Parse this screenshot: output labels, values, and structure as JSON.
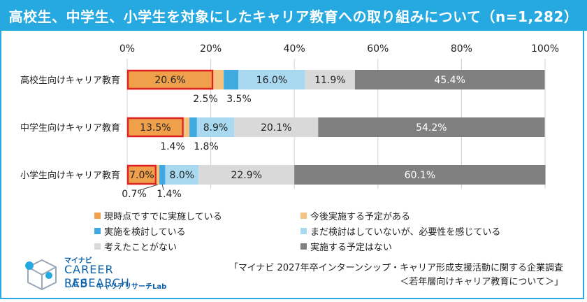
{
  "title": "高校生、中学生、小学生を対象にしたキャリア教育への取り組みについて（n=1,282）",
  "chart_data": {
    "type": "bar",
    "orientation": "horizontal",
    "stacked": true,
    "xlim": [
      0,
      100
    ],
    "xticks": [
      "0%",
      "20%",
      "40%",
      "60%",
      "80%",
      "100%"
    ],
    "categories": [
      "高校生向けキャリア教育",
      "中学生向けキャリア教育",
      "小学生向けキャリア教育"
    ],
    "series": [
      {
        "name": "現時点ですでに実施している",
        "color": "#f0a04b",
        "values": [
          20.6,
          13.5,
          7.0
        ],
        "labels": [
          "20.6%",
          "13.5%",
          "7.0%"
        ]
      },
      {
        "name": "今後実施する予定がある",
        "color": "#f5c27f",
        "values": [
          2.5,
          1.4,
          0.7
        ],
        "labels": [
          "2.5%",
          "1.4%",
          "0.7%"
        ]
      },
      {
        "name": "実施を検討している",
        "color": "#3fa9e0",
        "values": [
          3.5,
          1.8,
          1.4
        ],
        "labels": [
          "3.5%",
          "1.8%",
          "1.4%"
        ]
      },
      {
        "name": "まだ検討はしていないが、必要性を感じている",
        "color": "#a9d9f0",
        "values": [
          16.0,
          8.9,
          8.0
        ],
        "labels": [
          "16.0%",
          "8.9%",
          "8.0%"
        ]
      },
      {
        "name": "考えたことがない",
        "color": "#d9d9d9",
        "values": [
          11.9,
          20.1,
          22.9
        ],
        "labels": [
          "11.9%",
          "20.1%",
          "22.9%"
        ]
      },
      {
        "name": "実施する予定はない",
        "color": "#808080",
        "values": [
          45.4,
          54.2,
          60.1
        ],
        "labels": [
          "45.4%",
          "54.2%",
          "60.1%"
        ]
      }
    ],
    "highlight_series": 0,
    "highlight_color": "#e02020"
  },
  "logo": {
    "small": "マイナビ",
    "main": "CAREER RESEARCH",
    "lab": "LAB",
    "sub": "キャリアリサーチLab",
    "color": "#0a5fa8"
  },
  "source": {
    "line1": "「マイナビ 2027年卒インターンシップ・キャリア形成支援活動に関する企業調査",
    "line2": "＜若年層向けキャリア教育について＞」"
  }
}
